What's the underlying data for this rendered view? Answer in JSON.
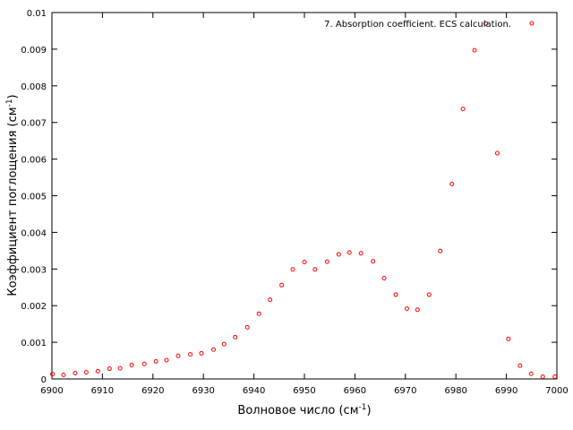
{
  "chart_data": {
    "type": "scatter",
    "title": "",
    "xlabel": "Волновое число (см",
    "xlabel_sup": "-1",
    "xlabel_close": ")",
    "ylabel": "Коэффициент поглощения (см",
    "ylabel_sup": "-1",
    "ylabel_close": ")",
    "xlim": [
      6900,
      7000
    ],
    "ylim": [
      0,
      0.01
    ],
    "x_ticks": [
      "6900",
      "6910",
      "6920",
      "6930",
      "6940",
      "6950",
      "6960",
      "6970",
      "6980",
      "6990",
      "7000"
    ],
    "y_ticks": [
      "0",
      "0.001",
      "0.002",
      "0.003",
      "0.004",
      "0.005",
      "0.006",
      "0.007",
      "0.008",
      "0.009",
      "0.01"
    ],
    "grid": false,
    "legend_position": "top-right",
    "marker": "open-circle",
    "series": [
      {
        "name": "7. Absorption coefficient. ECS calculation.",
        "color": "#ff0000",
        "x": [
          6900.1,
          6902.3,
          6904.6,
          6906.8,
          6909.1,
          6911.4,
          6913.5,
          6915.8,
          6918.3,
          6920.6,
          6922.7,
          6925.0,
          6927.4,
          6929.6,
          6932.0,
          6934.1,
          6936.3,
          6938.7,
          6941.0,
          6943.2,
          6945.5,
          6947.7,
          6950.0,
          6952.1,
          6954.5,
          6956.8,
          6958.9,
          6961.2,
          6963.6,
          6965.8,
          6968.1,
          6970.3,
          6972.4,
          6974.7,
          6976.9,
          6979.2,
          6981.4,
          6983.7,
          6985.9,
          6988.2,
          6990.4,
          6992.7,
          6994.9,
          6997.2,
          6999.6
        ],
        "y": [
          0.00013,
          0.00011,
          0.00016,
          0.00018,
          0.00021,
          0.00028,
          0.00029,
          0.00038,
          0.00041,
          0.00048,
          0.00051,
          0.00063,
          0.00067,
          0.0007,
          0.0008,
          0.00095,
          0.00114,
          0.00141,
          0.00178,
          0.00216,
          0.00256,
          0.00299,
          0.00319,
          0.00299,
          0.0032,
          0.0034,
          0.00345,
          0.00343,
          0.00321,
          0.00275,
          0.0023,
          0.00192,
          0.00189,
          0.0023,
          0.00349,
          0.00532,
          0.00737,
          0.00897,
          0.0097,
          0.00616,
          0.00109,
          0.00036,
          0.00014,
          6e-05,
          6e-05
        ]
      }
    ]
  }
}
